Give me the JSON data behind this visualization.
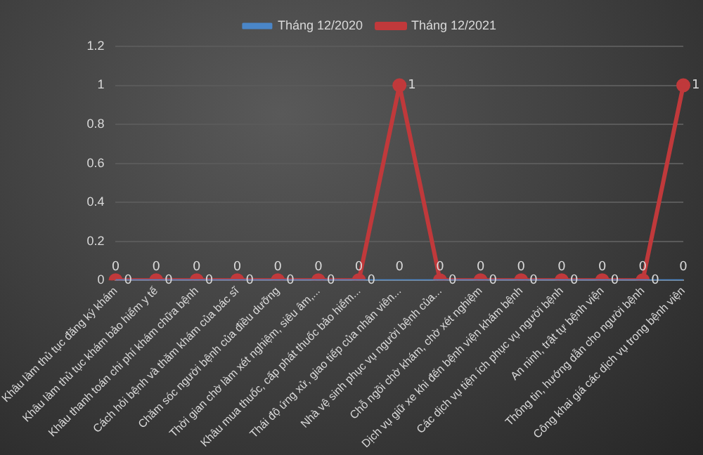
{
  "chart_data": {
    "type": "line",
    "categories": [
      "Khâu làm thủ tục đăng ký khám",
      "Khâu làm thủ tục khám bảo hiểm y tế",
      "Khâu thanh toán chi phí khám chữa bệnh",
      "Cách hỏi bệnh và thăm khám của bác sĩ",
      "Chăm sóc người bệnh của điều dưỡng",
      "Thời gian chờ làm xét nghiệm, siêu âm,...",
      "Khâu mua thuốc, cấp phát thuốc bảo hiểm...",
      "Thái độ ứng xử, giao tiếp của nhân viên...",
      "Nhà vệ sinh phục vụ người bệnh của...",
      "Chỗ ngồi chờ khám, chờ xét nghiệm",
      "Dịch vụ giữ xe khi đến bệnh viện khám bệnh",
      "Các dịch vụ tiện ích phục vụ người bệnh",
      "An ninh, trật tự bệnh viện",
      "Thông tin, hướng dẫn cho người bệnh",
      "Công khai giá các dịch vụ trong bệnh viện"
    ],
    "series": [
      {
        "name": "Tháng 12/2020",
        "color": "#4a86c8",
        "marker": "none",
        "values": [
          0,
          0,
          0,
          0,
          0,
          0,
          0,
          0,
          0,
          0,
          0,
          0,
          0,
          0,
          0
        ]
      },
      {
        "name": "Tháng 12/2021",
        "color": "#c0393b",
        "marker": "circle",
        "values": [
          0,
          0,
          0,
          0,
          0,
          0,
          0,
          1,
          0,
          0,
          0,
          0,
          0,
          0,
          1
        ]
      }
    ],
    "ylim": [
      0,
      1.2
    ],
    "yticks": [
      0,
      0.2,
      0.4,
      0.6,
      0.8,
      1,
      1.2
    ],
    "grid": "y",
    "legend": "top",
    "data_labels": true
  }
}
